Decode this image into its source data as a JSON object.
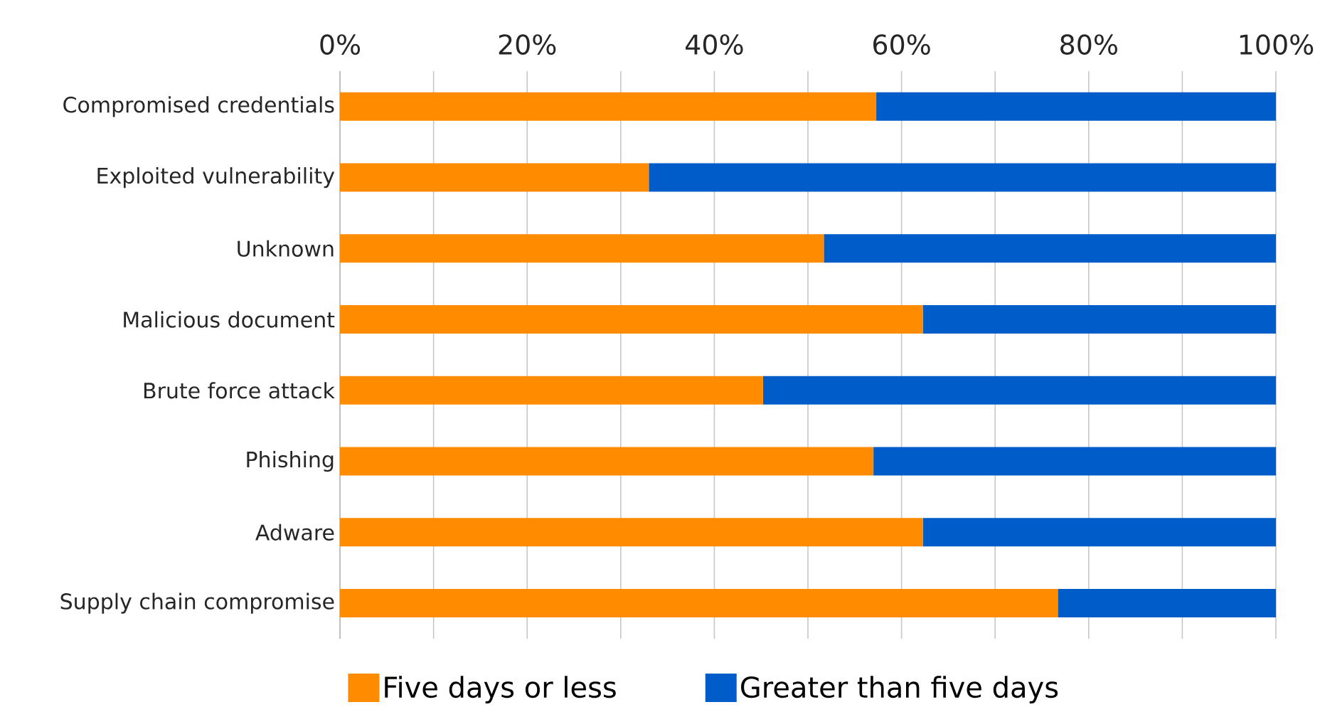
{
  "chart_data": {
    "type": "bar",
    "orientation": "horizontal",
    "stacked": true,
    "grid": "x",
    "legend": "bottom",
    "categories": [
      "Compromised credentials",
      "Exploited vulnerability",
      "Unknown",
      "Malicious document",
      "Brute force attack",
      "Phishing",
      "Adware",
      "Supply chain compromise"
    ],
    "series": [
      {
        "name": "Five days or less",
        "color": "#ff8c00",
        "values": [
          57.3,
          33.0,
          51.7,
          62.3,
          45.2,
          57.0,
          62.3,
          76.7
        ]
      },
      {
        "name": "Greater than five days",
        "color": "#005cc8",
        "values": [
          42.7,
          67.0,
          48.3,
          37.7,
          54.8,
          43.0,
          37.7,
          23.3
        ]
      }
    ],
    "xlim": [
      0,
      100
    ],
    "xticks": [
      {
        "value": 0,
        "label": "0%"
      },
      {
        "value": 10,
        "label": null
      },
      {
        "value": 20,
        "label": "20%"
      },
      {
        "value": 30,
        "label": null
      },
      {
        "value": 40,
        "label": "40%"
      },
      {
        "value": 50,
        "label": null
      },
      {
        "value": 60,
        "label": "60%"
      },
      {
        "value": 70,
        "label": null
      },
      {
        "value": 80,
        "label": "80%"
      },
      {
        "value": 90,
        "label": null
      },
      {
        "value": 100,
        "label": "100%"
      }
    ]
  }
}
